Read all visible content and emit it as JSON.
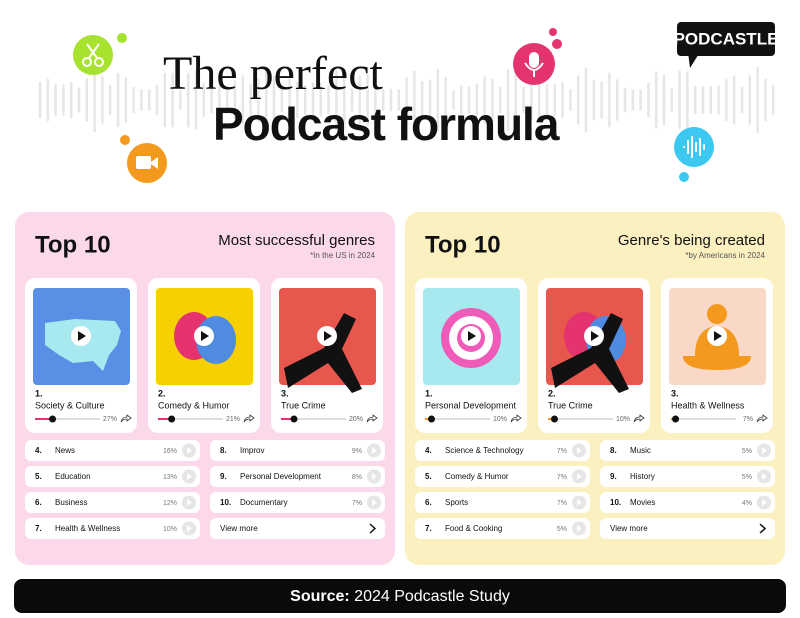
{
  "header": {
    "title_line1": "The perfect",
    "title_line2": "Podcast formula",
    "logo": "PODCASTLE"
  },
  "panels": [
    {
      "heading": "Top 10",
      "subtitle": "Most successful genres",
      "note": "*In the US in 2024",
      "top3": [
        {
          "rank": "1.",
          "name": "Society & Culture",
          "share": {
            "value": 27,
            "label": "27%"
          }
        },
        {
          "rank": "2.",
          "name": "Comedy & Humor",
          "share": {
            "value": 21,
            "label": "21%"
          }
        },
        {
          "rank": "3.",
          "name": "True Crime",
          "share": {
            "value": 20,
            "label": "20%"
          }
        }
      ],
      "list": [
        {
          "rank": "4.",
          "name": "News",
          "share": {
            "value": 16,
            "label": "16%"
          }
        },
        {
          "rank": "5.",
          "name": "Education",
          "share": {
            "value": 13,
            "label": "13%"
          }
        },
        {
          "rank": "6.",
          "name": "Business",
          "share": {
            "value": 12,
            "label": "12%"
          }
        },
        {
          "rank": "7.",
          "name": "Health & Wellness",
          "share": {
            "value": 10,
            "label": "10%"
          }
        },
        {
          "rank": "8.",
          "name": "Improv",
          "share": {
            "value": 9,
            "label": "9%"
          }
        },
        {
          "rank": "9.",
          "name": "Personal Development",
          "share": {
            "value": 8,
            "label": "8%"
          }
        },
        {
          "rank": "10.",
          "name": "Documentary",
          "share": {
            "value": 7,
            "label": "7%"
          }
        }
      ],
      "view_more": "View more"
    },
    {
      "heading": "Top 10",
      "subtitle": "Genre's being created",
      "note": "*by Americans in 2024",
      "top3": [
        {
          "rank": "1.",
          "name": "Personal Development",
          "share": {
            "value": 10,
            "label": "10%"
          }
        },
        {
          "rank": "2.",
          "name": "True Crime",
          "share": {
            "value": 10,
            "label": "10%"
          }
        },
        {
          "rank": "3.",
          "name": "Health & Wellness",
          "share": {
            "value": 7,
            "label": "7%"
          }
        }
      ],
      "list": [
        {
          "rank": "4.",
          "name": "Science & Technology",
          "share": {
            "value": 7,
            "label": "7%"
          }
        },
        {
          "rank": "5.",
          "name": "Comedy & Humor",
          "share": {
            "value": 7,
            "label": "7%"
          }
        },
        {
          "rank": "6.",
          "name": "Sports",
          "share": {
            "value": 7,
            "label": "7%"
          }
        },
        {
          "rank": "7.",
          "name": "Food & Cooking",
          "share": {
            "value": 5,
            "label": "5%"
          }
        },
        {
          "rank": "8.",
          "name": "Music",
          "share": {
            "value": 5,
            "label": "5%"
          }
        },
        {
          "rank": "9.",
          "name": "History",
          "share": {
            "value": 5,
            "label": "5%"
          }
        },
        {
          "rank": "10.",
          "name": "Movies",
          "share": {
            "value": 4,
            "label": "4%"
          }
        }
      ],
      "view_more": "View more"
    }
  ],
  "footer": {
    "source_label": "Source:",
    "source_text": "2024 Podcastle Study"
  }
}
